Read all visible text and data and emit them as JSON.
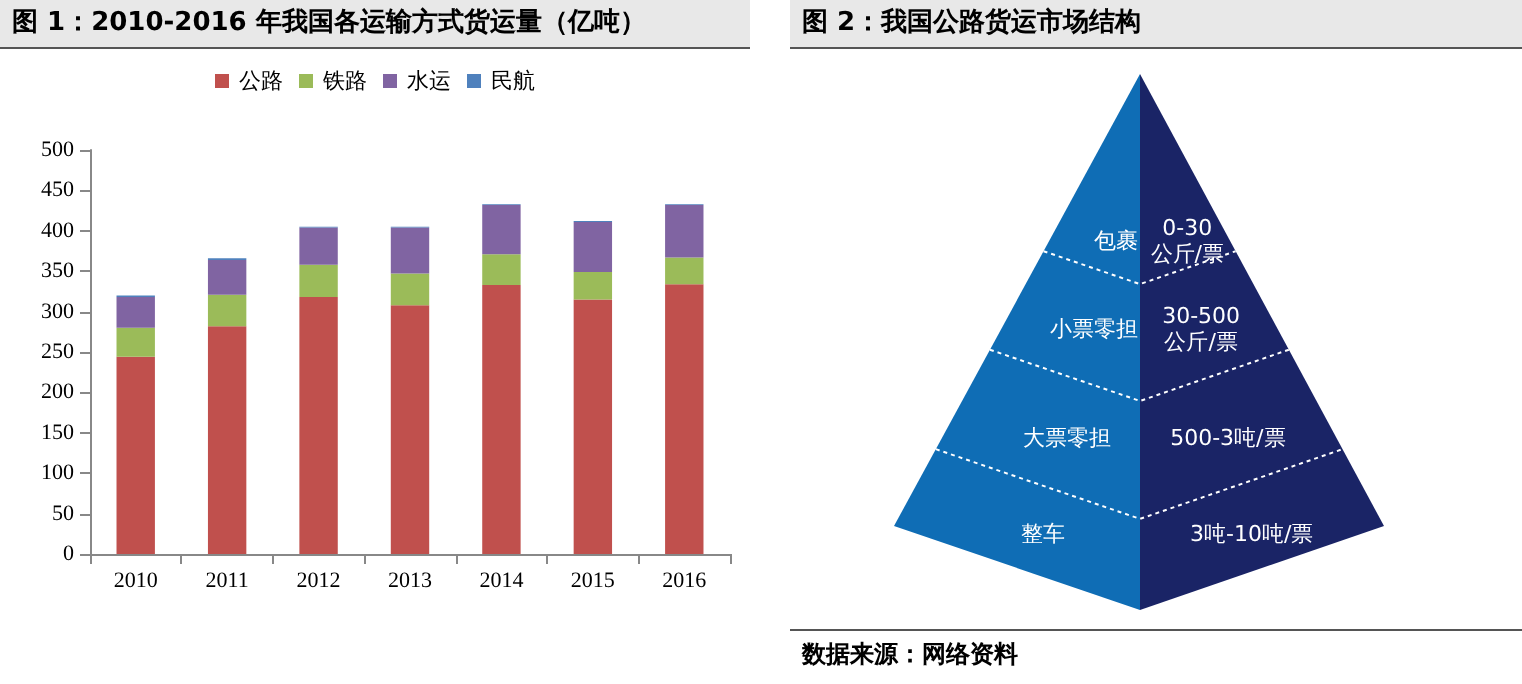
{
  "chart_data": [
    {
      "type": "bar",
      "title": "图 1：2010-2016 年我国各运输方式货运量（亿吨）",
      "categories": [
        "2010",
        "2011",
        "2012",
        "2013",
        "2014",
        "2015",
        "2016"
      ],
      "stacked": true,
      "legend": "top",
      "grid": false,
      "ylim": [
        0,
        500
      ],
      "yticks": [
        0,
        50,
        100,
        150,
        200,
        250,
        300,
        350,
        400,
        450,
        500
      ],
      "series": [
        {
          "name": "公路",
          "color": "#c0504d",
          "values": [
            244,
            282,
            318,
            308,
            333,
            315,
            334
          ]
        },
        {
          "name": "铁路",
          "color": "#9bbb59",
          "values": [
            36,
            39,
            40,
            39,
            38,
            34,
            33
          ]
        },
        {
          "name": "水运",
          "color": "#8064a2",
          "values": [
            38,
            43,
            46,
            57,
            61,
            62,
            65
          ]
        },
        {
          "name": "民航",
          "color": "#4f81bd",
          "values": [
            2,
            2,
            1,
            1,
            1,
            1,
            1
          ]
        }
      ]
    },
    {
      "type": "other",
      "title": "图 2：我国公路货运市场结构",
      "categories": [
        "包裹",
        "小票零担",
        "大票零担",
        "整车"
      ],
      "y2_categories": [
        "0-30\n公斤/票",
        "30-500\n公斤/票",
        "500-3吨/票",
        "3吨-10吨/票"
      ],
      "colors": [
        "#0f6db5",
        "#1a2466"
      ],
      "annotations": [
        "数据来源：网络资料"
      ]
    }
  ]
}
